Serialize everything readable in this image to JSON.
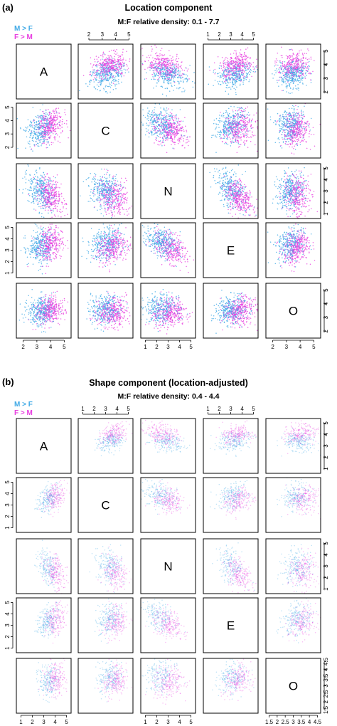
{
  "colors": {
    "m_gt_f": "#3fa9e6",
    "f_gt_m": "#e83fe0",
    "frame": "#000000"
  },
  "chart_data": [
    {
      "type": "scatter",
      "panel_label": "(a)",
      "title": "Location component",
      "subtitle": "M:F relative density: 0.1 - 7.7",
      "legend": [
        "M > F",
        "F > M"
      ],
      "legend_position": "top-left",
      "variables": [
        "A",
        "C",
        "N",
        "E",
        "O"
      ],
      "axes": {
        "A": {
          "range": [
            1.5,
            5.5
          ],
          "ticks": [
            2,
            3,
            4,
            5
          ]
        },
        "C": {
          "range": [
            1.2,
            5.3
          ],
          "ticks": [
            2,
            3,
            4,
            5
          ]
        },
        "N": {
          "range": [
            0.6,
            5.4
          ],
          "ticks": [
            1,
            2,
            3,
            4,
            5
          ]
        },
        "E": {
          "range": [
            0.6,
            5.4
          ],
          "ticks": [
            1,
            2,
            3,
            4,
            5
          ]
        },
        "O": {
          "range": [
            1.5,
            5.5
          ],
          "ticks": [
            2,
            3,
            4,
            5
          ]
        }
      },
      "means": {
        "A": 3.6,
        "C": 3.5,
        "N": 2.8,
        "E": 3.4,
        "O": 3.5
      },
      "sds": {
        "A": 0.6,
        "C": 0.65,
        "N": 0.85,
        "E": 0.75,
        "O": 0.55
      },
      "correlations": {
        "A-C": 0.3,
        "A-N": -0.4,
        "A-E": 0.25,
        "A-O": 0.1,
        "C-N": -0.35,
        "C-E": 0.1,
        "C-O": 0.0,
        "E-N": -0.5,
        "N-O": -0.05,
        "E-O": 0.15
      },
      "sex_axis": "A",
      "points_per_panel": 650,
      "point_opacity": 0.8
    },
    {
      "type": "scatter",
      "panel_label": "(b)",
      "title": "Shape component (location-adjusted)",
      "subtitle": "M:F relative density: 0.4 - 4.4",
      "legend": [
        "M > F",
        "F > M"
      ],
      "legend_position": "top-left",
      "variables": [
        "A",
        "C",
        "N",
        "E",
        "O"
      ],
      "axes": {
        "A": {
          "range": [
            0.6,
            5.4
          ],
          "ticks": [
            1,
            2,
            3,
            4,
            5
          ]
        },
        "C": {
          "range": [
            0.6,
            5.4
          ],
          "ticks": [
            1,
            2,
            3,
            4,
            5
          ]
        },
        "N": {
          "range": [
            0.6,
            5.4
          ],
          "ticks": [
            1,
            2,
            3,
            4,
            5
          ]
        },
        "E": {
          "range": [
            0.6,
            5.4
          ],
          "ticks": [
            1,
            2,
            3,
            4,
            5
          ]
        },
        "O": {
          "range": [
            1.3,
            4.7
          ],
          "ticks": [
            1.5,
            2,
            2.5,
            3,
            3.5,
            4,
            4.5
          ]
        }
      },
      "means": {
        "A": 3.7,
        "C": 3.6,
        "N": 2.7,
        "E": 3.4,
        "O": 3.4
      },
      "sds": {
        "A": 0.55,
        "C": 0.6,
        "N": 0.8,
        "E": 0.7,
        "O": 0.5
      },
      "correlations": {
        "A-C": 0.35,
        "A-N": -0.4,
        "A-E": 0.25,
        "A-O": 0.1,
        "C-N": -0.35,
        "C-E": 0.1,
        "C-O": 0.0,
        "E-N": -0.5,
        "N-O": -0.05,
        "E-O": 0.15
      },
      "sex_axis": "A",
      "points_per_panel": 420,
      "point_opacity": 0.35
    }
  ]
}
